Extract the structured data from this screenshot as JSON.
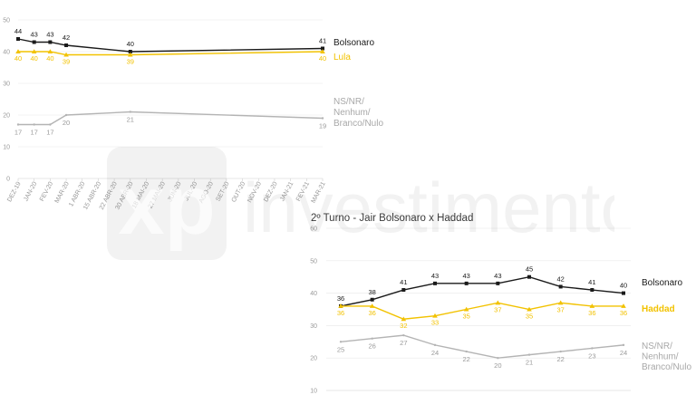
{
  "colors": {
    "bolsonaro": "#1a1a1a",
    "lula": "#f2c200",
    "ns": "#b4b4b4",
    "grid": "#e8e8e8",
    "axis": "#cfcfcf"
  },
  "watermark": {
    "text": "investimentos",
    "logo": "xp"
  },
  "chart_data": [
    {
      "type": "line",
      "title": "",
      "ylim": [
        0,
        50
      ],
      "yticks": [
        "0",
        "10",
        "20",
        "30",
        "40",
        "50"
      ],
      "categories": [
        "DEZ-19",
        "JAN-20",
        "FEV-20",
        "MAR-20",
        "1 ABR-20",
        "15 ABR-20",
        "22 ABR-20",
        "30 ABR-20",
        "18 MAI-20",
        "27 MAI-20",
        "JUN-20",
        "JUL-20",
        "AGO-20",
        "SET-20",
        "OUT-20",
        "NOV-20",
        "DEZ-20",
        "JAN-21",
        "FEV-21",
        "MAR-21"
      ],
      "legend_placement": "right",
      "series": [
        {
          "name": "Bolsonaro",
          "color": "bolsonaro",
          "marker": "square",
          "x": [
            0,
            1,
            2,
            3,
            7,
            19
          ],
          "values": [
            44,
            43,
            43,
            42,
            40,
            41
          ]
        },
        {
          "name": "Lula",
          "color": "lula",
          "marker": "triangle",
          "x": [
            0,
            1,
            2,
            3,
            7,
            19
          ],
          "values": [
            40,
            40,
            40,
            39,
            39,
            40
          ]
        },
        {
          "name": "NS/NR/ Nenhum/ Branco/Nulo",
          "name_lines": [
            "NS/NR/",
            "Nenhum/",
            "Branco/Nulo"
          ],
          "color": "ns",
          "marker": "none",
          "x": [
            0,
            1,
            2,
            3,
            7,
            19
          ],
          "values": [
            17,
            17,
            17,
            20,
            21,
            19
          ]
        }
      ]
    },
    {
      "type": "line",
      "title": "2º Turno - Jair Bolsonaro x Haddad",
      "ylim": [
        10,
        60
      ],
      "yticks": [
        "10",
        "20",
        "30",
        "40",
        "50",
        "60"
      ],
      "legend_placement": "right",
      "series": [
        {
          "name": "Bolsonaro",
          "color": "bolsonaro",
          "marker": "square",
          "values": [
            36,
            38,
            41,
            43,
            43,
            43,
            45,
            42,
            41,
            40
          ]
        },
        {
          "name": "Haddad",
          "color": "lula",
          "marker": "triangle",
          "values": [
            36,
            36,
            32,
            33,
            35,
            37,
            35,
            37,
            36,
            36
          ]
        },
        {
          "name": "NS/NR/ Nenhum/ Branco/Nulo",
          "name_lines": [
            "NS/NR/",
            "Nenhum/",
            "Branco/Nulo"
          ],
          "color": "ns",
          "marker": "none",
          "values": [
            25,
            26,
            27,
            24,
            22,
            20,
            21,
            22,
            23,
            24
          ]
        }
      ]
    }
  ]
}
